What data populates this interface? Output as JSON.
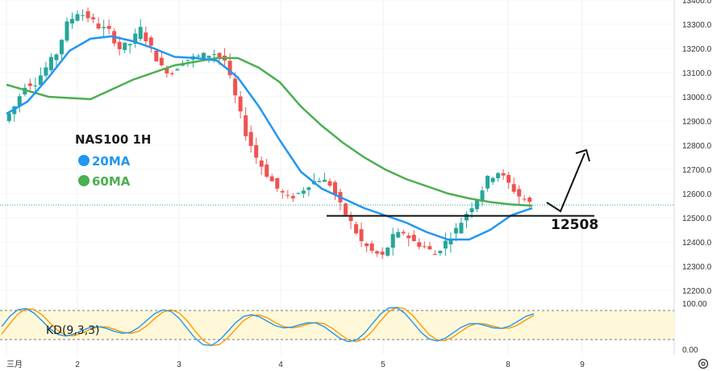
{
  "chart_data": {
    "type": "candlestick",
    "title": "NAS100 1H",
    "indicators": [
      {
        "name": "20MA",
        "color": "#2196f3"
      },
      {
        "name": "60MA",
        "color": "#4caf50"
      }
    ],
    "y_axis": {
      "ticks": [
        "13400.0",
        "13300.0",
        "13200.0",
        "13100.0",
        "13000.0",
        "12900.0",
        "12800.0",
        "12700.0",
        "12600.0",
        "12500.0",
        "12400.0",
        "12300.0",
        "12200.0"
      ],
      "range": [
        12150,
        13400
      ]
    },
    "x_axis": {
      "labels": [
        "三月",
        "2",
        "3",
        "4",
        "5",
        "8",
        "9"
      ]
    },
    "current_price": 12553,
    "support_level": {
      "value": 12508,
      "label": "12508"
    },
    "candles_close_path": [
      [
        0,
        12900
      ],
      [
        1,
        12960
      ],
      [
        2,
        13050
      ],
      [
        3,
        13060
      ],
      [
        4,
        13120
      ],
      [
        5,
        13180
      ],
      [
        6,
        13300
      ],
      [
        7,
        13350
      ],
      [
        8,
        13330
      ],
      [
        9,
        13290
      ],
      [
        10,
        13270
      ],
      [
        11,
        13200
      ],
      [
        12,
        13220
      ],
      [
        13,
        13280
      ],
      [
        14,
        13200
      ],
      [
        15,
        13120
      ],
      [
        16,
        13100
      ],
      [
        17,
        13150
      ],
      [
        18,
        13160
      ],
      [
        19,
        13170
      ],
      [
        20,
        13180
      ],
      [
        21,
        13150
      ],
      [
        22,
        13000
      ],
      [
        23,
        12850
      ],
      [
        24,
        12750
      ],
      [
        25,
        12680
      ],
      [
        26,
        12620
      ],
      [
        27,
        12580
      ],
      [
        28,
        12600
      ],
      [
        29,
        12640
      ],
      [
        30,
        12660
      ],
      [
        31,
        12640
      ],
      [
        32,
        12550
      ],
      [
        33,
        12480
      ],
      [
        34,
        12400
      ],
      [
        35,
        12360
      ],
      [
        36,
        12340
      ],
      [
        37,
        12420
      ],
      [
        38,
        12440
      ],
      [
        39,
        12400
      ],
      [
        40,
        12380
      ],
      [
        41,
        12350
      ],
      [
        42,
        12400
      ],
      [
        43,
        12450
      ],
      [
        44,
        12520
      ],
      [
        45,
        12580
      ],
      [
        46,
        12660
      ],
      [
        47,
        12690
      ],
      [
        48,
        12640
      ],
      [
        49,
        12590
      ],
      [
        50,
        12560
      ]
    ],
    "ma20": [
      [
        0,
        12930
      ],
      [
        2,
        12980
      ],
      [
        4,
        13080
      ],
      [
        6,
        13190
      ],
      [
        8,
        13240
      ],
      [
        10,
        13250
      ],
      [
        12,
        13230
      ],
      [
        14,
        13200
      ],
      [
        16,
        13165
      ],
      [
        18,
        13160
      ],
      [
        20,
        13150
      ],
      [
        22,
        13080
      ],
      [
        24,
        12960
      ],
      [
        26,
        12820
      ],
      [
        28,
        12690
      ],
      [
        30,
        12620
      ],
      [
        32,
        12580
      ],
      [
        34,
        12540
      ],
      [
        36,
        12510
      ],
      [
        38,
        12480
      ],
      [
        40,
        12440
      ],
      [
        42,
        12410
      ],
      [
        44,
        12410
      ],
      [
        46,
        12450
      ],
      [
        48,
        12510
      ],
      [
        50,
        12540
      ]
    ],
    "ma60": [
      [
        0,
        13050
      ],
      [
        4,
        13000
      ],
      [
        8,
        12990
      ],
      [
        12,
        13070
      ],
      [
        16,
        13130
      ],
      [
        20,
        13160
      ],
      [
        22,
        13160
      ],
      [
        24,
        13120
      ],
      [
        26,
        13060
      ],
      [
        28,
        12960
      ],
      [
        30,
        12880
      ],
      [
        32,
        12810
      ],
      [
        34,
        12750
      ],
      [
        36,
        12700
      ],
      [
        38,
        12660
      ],
      [
        40,
        12630
      ],
      [
        42,
        12600
      ],
      [
        44,
        12580
      ],
      [
        46,
        12565
      ],
      [
        48,
        12555
      ],
      [
        50,
        12550
      ]
    ],
    "kd": {
      "label": "KD(9,3,3)",
      "ticks": [
        "100.00",
        "0.00"
      ],
      "band_color": "#fff8d8",
      "k_color": "#2196f3",
      "d_color": "#ff9800"
    }
  }
}
